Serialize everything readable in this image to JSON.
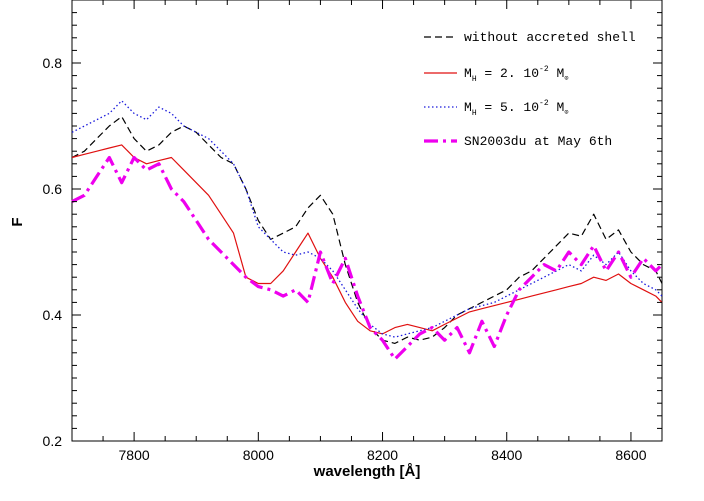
{
  "chart_data": {
    "type": "line",
    "title": "",
    "xlabel": "wavelength [Å]",
    "ylabel": "F",
    "xlim": [
      7700,
      8650
    ],
    "ylim": [
      0.2,
      0.9
    ],
    "x_ticks": [
      7800,
      8000,
      8200,
      8400,
      8600
    ],
    "x_tick_labels": [
      "7800",
      "8000",
      "8200",
      "8400",
      "8600"
    ],
    "y_ticks": [
      0.2,
      0.4,
      0.6,
      0.8
    ],
    "y_tick_labels": [
      "0.2",
      "0.4",
      "0.6",
      "0.8"
    ],
    "legend_position": "top-right",
    "series": [
      {
        "name": "without accreted shell",
        "legend_parts": {
          "main": "without accreted shell",
          "sub": "",
          "mid": "",
          "sup": "",
          "tail": ""
        },
        "color": "#000000",
        "style": "dashed",
        "x": [
          7700,
          7720,
          7740,
          7760,
          7780,
          7800,
          7820,
          7840,
          7860,
          7880,
          7900,
          7920,
          7940,
          7960,
          7980,
          8000,
          8020,
          8040,
          8060,
          8080,
          8100,
          8120,
          8140,
          8160,
          8180,
          8200,
          8220,
          8240,
          8260,
          8280,
          8300,
          8320,
          8340,
          8360,
          8380,
          8400,
          8420,
          8440,
          8460,
          8480,
          8500,
          8520,
          8540,
          8560,
          8580,
          8600,
          8620,
          8640,
          8650
        ],
        "y": [
          0.65,
          0.66,
          0.68,
          0.7,
          0.715,
          0.68,
          0.66,
          0.67,
          0.69,
          0.7,
          0.69,
          0.67,
          0.65,
          0.64,
          0.6,
          0.55,
          0.52,
          0.53,
          0.54,
          0.57,
          0.59,
          0.56,
          0.48,
          0.42,
          0.38,
          0.36,
          0.355,
          0.365,
          0.36,
          0.365,
          0.38,
          0.4,
          0.41,
          0.42,
          0.43,
          0.44,
          0.46,
          0.47,
          0.49,
          0.51,
          0.53,
          0.525,
          0.56,
          0.52,
          0.535,
          0.5,
          0.48,
          0.47,
          0.45
        ]
      },
      {
        "name": "M_H = 2. 10^-2 M_o",
        "legend_parts": {
          "main": "M",
          "sub": "H",
          "mid": " = 2. 10",
          "sup": "-2",
          "tail": " M"
        },
        "color": "#e01010",
        "style": "solid",
        "x": [
          7700,
          7720,
          7740,
          7760,
          7780,
          7800,
          7820,
          7840,
          7860,
          7880,
          7900,
          7920,
          7940,
          7960,
          7980,
          8000,
          8020,
          8040,
          8060,
          8080,
          8100,
          8120,
          8140,
          8160,
          8180,
          8200,
          8220,
          8240,
          8260,
          8280,
          8300,
          8320,
          8340,
          8360,
          8380,
          8400,
          8420,
          8440,
          8460,
          8480,
          8500,
          8520,
          8540,
          8560,
          8580,
          8600,
          8620,
          8640,
          8650
        ],
        "y": [
          0.65,
          0.655,
          0.66,
          0.665,
          0.67,
          0.65,
          0.64,
          0.645,
          0.65,
          0.63,
          0.61,
          0.59,
          0.56,
          0.53,
          0.46,
          0.45,
          0.45,
          0.47,
          0.5,
          0.53,
          0.49,
          0.46,
          0.42,
          0.39,
          0.375,
          0.37,
          0.38,
          0.385,
          0.38,
          0.375,
          0.385,
          0.395,
          0.405,
          0.41,
          0.415,
          0.42,
          0.425,
          0.43,
          0.435,
          0.44,
          0.445,
          0.45,
          0.46,
          0.455,
          0.465,
          0.45,
          0.44,
          0.43,
          0.42
        ]
      },
      {
        "name": "M_H = 5. 10^-2 M_o",
        "legend_parts": {
          "main": "M",
          "sub": "H",
          "mid": " = 5. 10",
          "sup": "-2",
          "tail": " M"
        },
        "color": "#1a1adc",
        "style": "dotted",
        "x": [
          7700,
          7720,
          7740,
          7760,
          7780,
          7800,
          7820,
          7840,
          7860,
          7880,
          7900,
          7920,
          7940,
          7960,
          7980,
          8000,
          8020,
          8040,
          8060,
          8080,
          8100,
          8120,
          8140,
          8160,
          8180,
          8200,
          8220,
          8240,
          8260,
          8280,
          8300,
          8320,
          8340,
          8360,
          8380,
          8400,
          8420,
          8440,
          8460,
          8480,
          8500,
          8520,
          8540,
          8560,
          8580,
          8600,
          8620,
          8640,
          8650
        ],
        "y": [
          0.69,
          0.7,
          0.71,
          0.72,
          0.74,
          0.72,
          0.71,
          0.73,
          0.72,
          0.7,
          0.69,
          0.68,
          0.66,
          0.64,
          0.6,
          0.54,
          0.52,
          0.5,
          0.495,
          0.5,
          0.49,
          0.47,
          0.44,
          0.41,
          0.385,
          0.37,
          0.365,
          0.37,
          0.375,
          0.38,
          0.39,
          0.4,
          0.41,
          0.415,
          0.42,
          0.43,
          0.44,
          0.45,
          0.46,
          0.47,
          0.48,
          0.47,
          0.495,
          0.48,
          0.5,
          0.47,
          0.45,
          0.44,
          0.43
        ]
      },
      {
        "name": "SN2003du at May 6th",
        "legend_parts": {
          "main": "SN2003du at May 6th",
          "sub": "",
          "mid": "",
          "sup": "",
          "tail": ""
        },
        "color": "#ee00ee",
        "style": "dashdot",
        "x": [
          7700,
          7720,
          7740,
          7760,
          7780,
          7800,
          7820,
          7840,
          7860,
          7880,
          7900,
          7920,
          7940,
          7960,
          7980,
          8000,
          8020,
          8040,
          8060,
          8080,
          8100,
          8120,
          8140,
          8160,
          8180,
          8200,
          8220,
          8240,
          8260,
          8280,
          8300,
          8320,
          8340,
          8360,
          8380,
          8400,
          8420,
          8440,
          8460,
          8480,
          8500,
          8520,
          8540,
          8560,
          8580,
          8600,
          8620,
          8640,
          8650
        ],
        "y": [
          0.58,
          0.59,
          0.62,
          0.65,
          0.61,
          0.65,
          0.63,
          0.64,
          0.6,
          0.58,
          0.55,
          0.52,
          0.5,
          0.48,
          0.46,
          0.445,
          0.44,
          0.43,
          0.44,
          0.42,
          0.5,
          0.45,
          0.49,
          0.43,
          0.38,
          0.36,
          0.33,
          0.35,
          0.37,
          0.38,
          0.36,
          0.38,
          0.34,
          0.39,
          0.35,
          0.4,
          0.44,
          0.46,
          0.48,
          0.47,
          0.5,
          0.48,
          0.51,
          0.47,
          0.5,
          0.46,
          0.49,
          0.47,
          0.48
        ]
      }
    ]
  }
}
